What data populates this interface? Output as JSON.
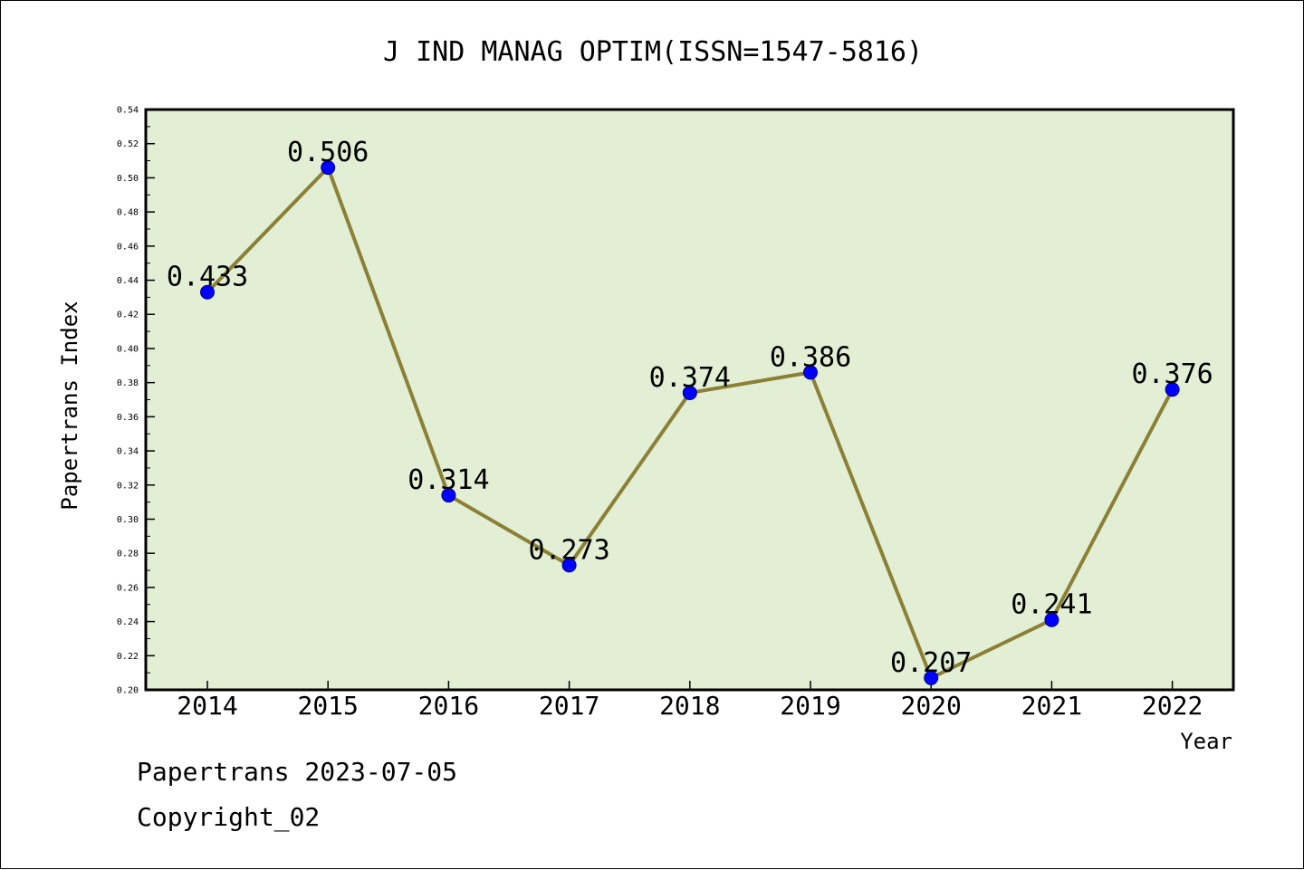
{
  "chart_data": {
    "type": "line",
    "title": "J IND MANAG OPTIM(ISSN=1547-5816)",
    "xlabel": "Year",
    "ylabel": "Papertrans Index",
    "categories": [
      "2014",
      "2015",
      "2016",
      "2017",
      "2018",
      "2019",
      "2020",
      "2021",
      "2022"
    ],
    "values": [
      0.433,
      0.506,
      0.314,
      0.273,
      0.374,
      0.386,
      0.207,
      0.241,
      0.376
    ],
    "data_labels": [
      "0.433",
      "0.506",
      "0.314",
      "0.273",
      "0.374",
      "0.386",
      "0.207",
      "0.241",
      "0.376"
    ],
    "ylim": [
      0.2,
      0.54
    ],
    "yticks": [
      "0.20",
      "0.22",
      "0.24",
      "0.26",
      "0.28",
      "0.30",
      "0.32",
      "0.34",
      "0.36",
      "0.38",
      "0.40",
      "0.42",
      "0.44",
      "0.46",
      "0.48",
      "0.50",
      "0.52",
      "0.54"
    ],
    "grid": false,
    "legend": "none",
    "colors": {
      "plot_background": "#e2efd5",
      "line": "#8b8035",
      "marker": "#0000ff"
    }
  },
  "footer": {
    "line1": "Papertrans 2023-07-05",
    "line2": "Copyright_02"
  }
}
